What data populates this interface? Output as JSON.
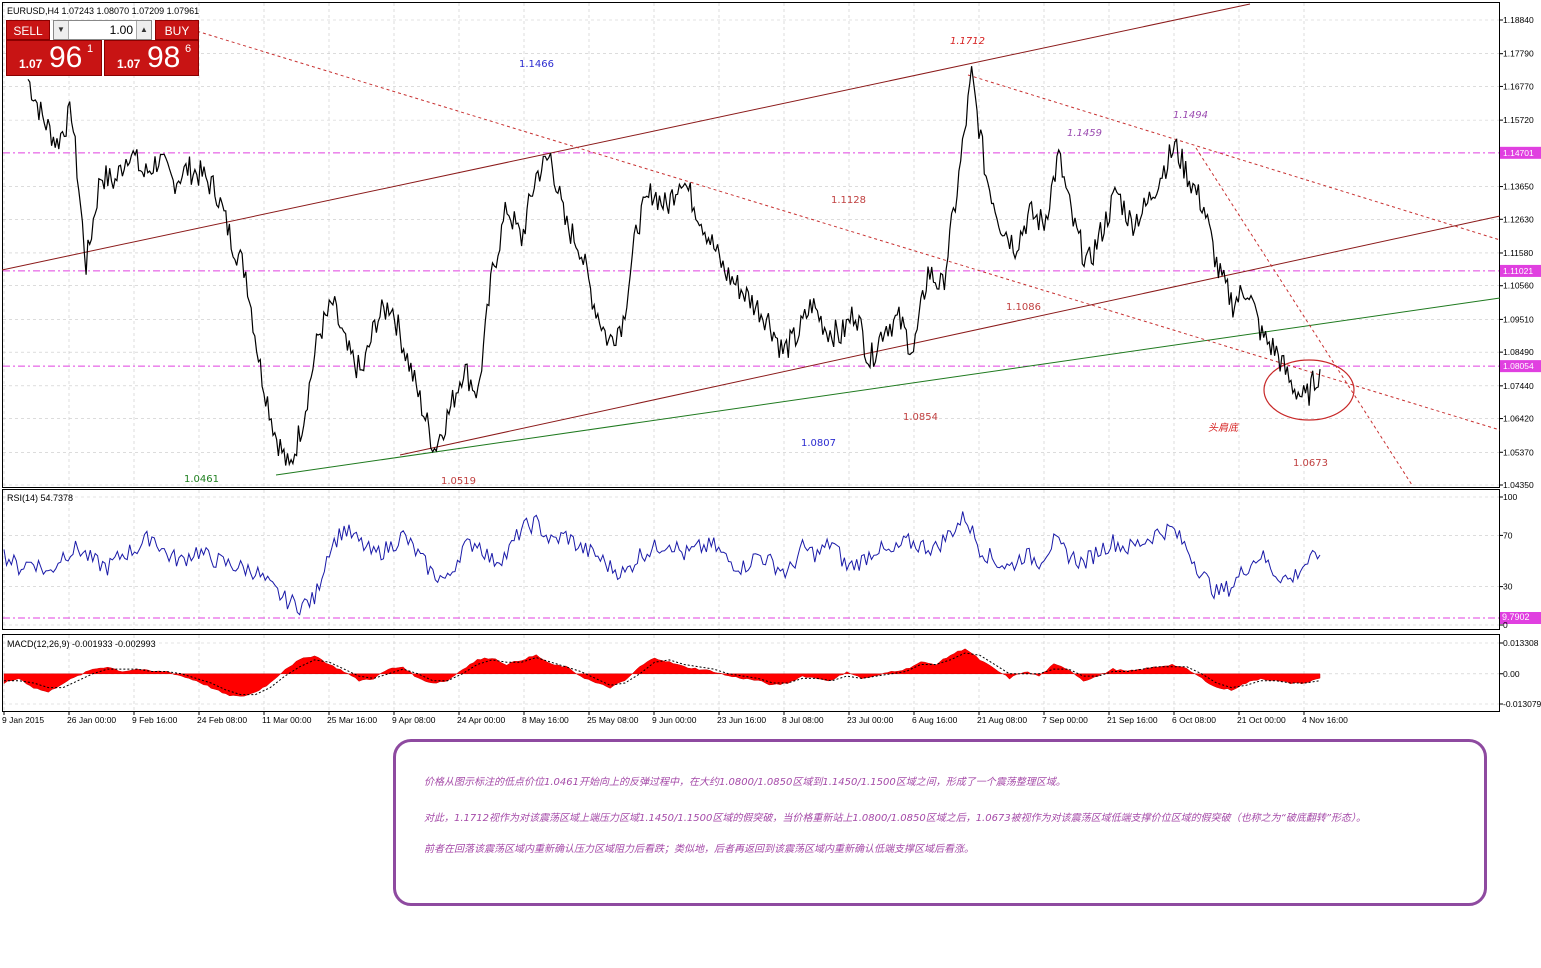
{
  "header": {
    "symbol_line": "EURUSD,H4  1.07243 1.08070 1.07209 1.07961"
  },
  "trade_panel": {
    "sell_label": "SELL",
    "buy_label": "BUY",
    "lot_value": "1.00",
    "sell_prefix": "1.07",
    "sell_big": "96",
    "sell_sup": "1",
    "buy_prefix": "1.07",
    "buy_big": "98",
    "buy_sup": "6"
  },
  "chart_data": [
    {
      "type": "line",
      "title": "EURUSD,H4  1.07243 1.08070 1.07209 1.07961",
      "ylim": [
        1.0435,
        1.1925
      ],
      "y_ticks": [
        "1.18840",
        "1.17790",
        "1.16770",
        "1.15720",
        "1.14701",
        "1.13650",
        "1.12630",
        "1.11580",
        "1.11021",
        "1.10560",
        "1.09510",
        "1.08490",
        "1.08054",
        "1.07440",
        "1.06420",
        "1.05370",
        "1.04350"
      ],
      "highlighted_levels": [
        {
          "value": 1.14701,
          "label": "1.14701",
          "color": "#e040e0"
        },
        {
          "value": 1.11021,
          "label": "1.11021",
          "color": "#e040e0"
        },
        {
          "value": 1.08054,
          "label": "1.08054",
          "color": "#e040e0"
        }
      ],
      "x_labels": [
        "9 Jan 2015",
        "26 Jan 00:00",
        "9 Feb 16:00",
        "24 Feb 08:00",
        "11 Mar 00:00",
        "25 Mar 16:00",
        "9 Apr 08:00",
        "24 Apr 00:00",
        "8 May 16:00",
        "25 May 08:00",
        "9 Jun 00:00",
        "23 Jun 16:00",
        "8 Jul 08:00",
        "23 Jul 00:00",
        "6 Aug 16:00",
        "21 Aug 08:00",
        "7 Sep 00:00",
        "21 Sep 16:00",
        "6 Oct 08:00",
        "21 Oct 00:00",
        "4 Nov 16:00"
      ],
      "series": [
        {
          "values": [
            1.17,
            1.158,
            1.15,
            1.16,
            1.112,
            1.14,
            1.138,
            1.148,
            1.14,
            1.145,
            1.138,
            1.142,
            1.14,
            1.135,
            1.12,
            1.11,
            1.08,
            1.06,
            1.048,
            1.065,
            1.09,
            1.1,
            1.085,
            1.078,
            1.095,
            1.1,
            1.085,
            1.07,
            1.055,
            1.066,
            1.08,
            1.072,
            1.11,
            1.13,
            1.12,
            1.14,
            1.146,
            1.125,
            1.118,
            1.1,
            1.088,
            1.095,
            1.125,
            1.135,
            1.13,
            1.14,
            1.13,
            1.12,
            1.11,
            1.105,
            1.1,
            1.095,
            1.085,
            1.09,
            1.1,
            1.092,
            1.09,
            1.098,
            1.082,
            1.093,
            1.095,
            1.085,
            1.11,
            1.105,
            1.135,
            1.171,
            1.14,
            1.125,
            1.118,
            1.128,
            1.125,
            1.146,
            1.125,
            1.112,
            1.123,
            1.135,
            1.125,
            1.13,
            1.14,
            1.149,
            1.139,
            1.13,
            1.11,
            1.1,
            1.105,
            1.09,
            1.085,
            1.075,
            1.07,
            1.0796
          ]
        }
      ],
      "annotations": [
        {
          "text": "1.1466",
          "color": "#2b2bd0"
        },
        {
          "text": "1.1712",
          "color": "#d62020"
        },
        {
          "text": "1.1459",
          "color": "#9a4ab0"
        },
        {
          "text": "1.1494",
          "color": "#9a4ab0"
        },
        {
          "text": "1.1128",
          "color": "#c04040"
        },
        {
          "text": "1.1086",
          "color": "#c04040"
        },
        {
          "text": "1.0854",
          "color": "#c04040"
        },
        {
          "text": "1.0807",
          "color": "#2b2bd0"
        },
        {
          "text": "1.0461",
          "color": "#208020"
        },
        {
          "text": "1.0519",
          "color": "#c04040"
        },
        {
          "text": "1.0673",
          "color": "#c04040"
        },
        {
          "text": "头肩底",
          "color": "#d62020"
        }
      ]
    },
    {
      "type": "line",
      "title": "RSI(14) 54.7378",
      "ylim": [
        0,
        100
      ],
      "y_ticks": [
        "100",
        "70",
        "30",
        "0"
      ],
      "level_label": "9.7902",
      "series": [
        {
          "values": [
            55,
            45,
            50,
            40,
            55,
            60,
            50,
            45,
            55,
            60,
            70,
            55,
            50,
            58,
            52,
            48,
            45,
            42,
            30,
            20,
            15,
            20,
            60,
            75,
            65,
            55,
            60,
            70,
            55,
            40,
            35,
            60,
            65,
            50,
            55,
            75,
            80,
            65,
            70,
            60,
            55,
            45,
            40,
            55,
            60,
            65,
            55,
            60,
            62,
            50,
            45,
            55,
            48,
            40,
            60,
            55,
            65,
            45,
            50,
            60,
            55,
            65,
            62,
            60,
            72,
            85,
            60,
            50,
            45,
            55,
            50,
            65,
            55,
            48,
            58,
            65,
            60,
            65,
            72,
            75,
            60,
            40,
            25,
            30,
            45,
            55,
            40,
            35,
            48,
            54.7
          ]
        }
      ]
    },
    {
      "type": "area",
      "title": "MACD(12,26,9) -0.001933 -0.002993",
      "ylim": [
        -0.013079,
        0.013308
      ],
      "y_ticks": [
        "0.013308",
        "0.00",
        "-0.013079"
      ],
      "series": [
        {
          "name": "MACD",
          "values": [
            -0.004,
            -0.002,
            -0.006,
            -0.008,
            -0.004,
            -0.001,
            0.002,
            0.003,
            0.001,
            0.002,
            0.001,
            0.001,
            -0.001,
            -0.003,
            -0.006,
            -0.009,
            -0.01,
            -0.008,
            -0.004,
            0.002,
            0.006,
            0.008,
            0.004,
            0.001,
            -0.003,
            -0.002,
            0.002,
            0.003,
            -0.002,
            -0.004,
            -0.003,
            0.002,
            0.006,
            0.007,
            0.004,
            0.006,
            0.008,
            0.004,
            0.003,
            -0.001,
            -0.004,
            -0.006,
            -0.003,
            0.003,
            0.007,
            0.005,
            0.003,
            0.002,
            0.001,
            -0.001,
            -0.002,
            -0.003,
            -0.005,
            -0.004,
            -0.001,
            -0.002,
            -0.003,
            0.001,
            -0.002,
            -0.001,
            0.001,
            0.002,
            0.005,
            0.004,
            0.008,
            0.011,
            0.006,
            0.002,
            -0.002,
            0.001,
            -0.001,
            0.004,
            0.002,
            -0.003,
            -0.001,
            0.002,
            0.001,
            0.002,
            0.003,
            0.004,
            0.002,
            -0.002,
            -0.006,
            -0.007,
            -0.004,
            -0.002,
            -0.003,
            -0.004,
            -0.004,
            -0.0019
          ]
        },
        {
          "name": "Signal",
          "values": [
            -0.003,
            -0.003,
            -0.004,
            -0.006,
            -0.006,
            -0.003,
            0.0,
            0.002,
            0.002,
            0.002,
            0.001,
            0.001,
            0.0,
            -0.002,
            -0.004,
            -0.007,
            -0.009,
            -0.009,
            -0.006,
            -0.001,
            0.003,
            0.006,
            0.005,
            0.002,
            -0.001,
            -0.002,
            0.0,
            0.002,
            0.0,
            -0.003,
            -0.003,
            0.0,
            0.004,
            0.006,
            0.005,
            0.005,
            0.007,
            0.005,
            0.003,
            0.001,
            -0.002,
            -0.005,
            -0.004,
            0.0,
            0.005,
            0.006,
            0.004,
            0.003,
            0.002,
            0.0,
            -0.001,
            -0.002,
            -0.004,
            -0.004,
            -0.002,
            -0.002,
            -0.003,
            -0.001,
            -0.002,
            -0.001,
            0.0,
            0.001,
            0.004,
            0.004,
            0.006,
            0.009,
            0.008,
            0.004,
            0.0,
            0.0,
            0.0,
            0.002,
            0.002,
            -0.001,
            -0.001,
            0.001,
            0.001,
            0.002,
            0.003,
            0.003,
            0.003,
            0.0,
            -0.004,
            -0.006,
            -0.005,
            -0.003,
            -0.003,
            -0.004,
            -0.004,
            -0.003
          ]
        }
      ]
    }
  ],
  "note": {
    "p1": "价格从图示标注的低点价位1.0461开始向上的反弹过程中，在大约1.0800/1.0850区域到1.1450/1.1500区域之间，形成了一个震荡整理区域。",
    "p2": "对此，1.1712视作为对该震荡区域上端压力区域1.1450/1.1500区域的假突破，当价格重新站上1.0800/1.0850区域之后，1.0673被视作为对该震荡区域低端支撑价位区域的假突破（也称之为“破底翻转”形态）。",
    "p3": "前者在回落该震荡区域内重新确认压力区域阻力后看跌；类似地，后者再返回到该震荡区域内重新确认低端支撑区域后看涨。"
  },
  "colors": {
    "price": "#000000",
    "rsi": "#1a1aa8",
    "macd_fill": "#ff0000",
    "trend_brown": "#8b1a1a",
    "trend_green": "#1f7a1f",
    "level": "#e040e0",
    "note_border": "#8e4aa0",
    "note_text": "#a54aa8"
  }
}
